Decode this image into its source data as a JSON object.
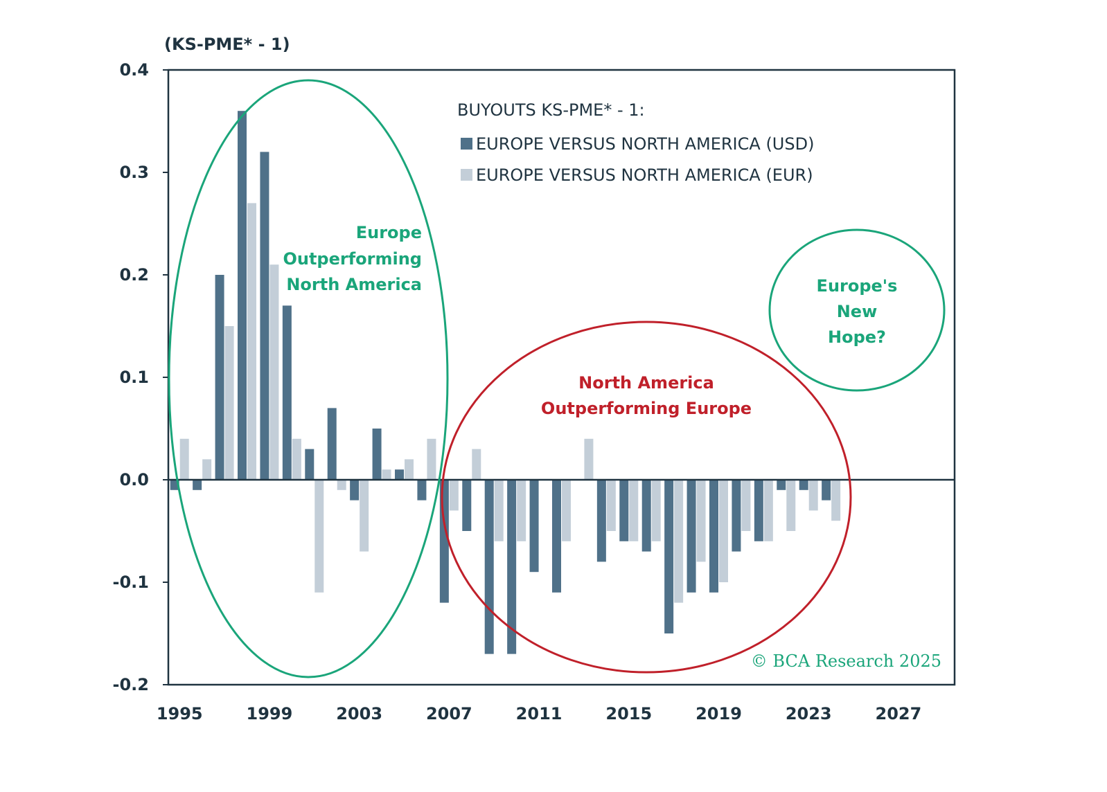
{
  "chart_data": {
    "type": "bar",
    "ylabel": "(KS-PME* - 1)",
    "ylim": [
      -0.2,
      0.4
    ],
    "yticks": [
      "0.4",
      "0.3",
      "0.2",
      "0.1",
      "0.0",
      "-0.1",
      "-0.2"
    ],
    "xlim": [
      1994.5,
      2029.5
    ],
    "xticks": [
      "1995",
      "1999",
      "2003",
      "2007",
      "2011",
      "2015",
      "2019",
      "2023",
      "2027"
    ],
    "legend_title": "BUYOUTS KS-PME* - 1:",
    "legend_position": "top-right",
    "categories": [
      1995,
      1996,
      1997,
      1998,
      1999,
      2000,
      2001,
      2002,
      2003,
      2004,
      2005,
      2006,
      2007,
      2008,
      2009,
      2010,
      2011,
      2012,
      2013,
      2014,
      2015,
      2016,
      2017,
      2018,
      2019,
      2020,
      2021,
      2022,
      2023,
      2024
    ],
    "series": [
      {
        "name": "EUROPE VERSUS NORTH AMERICA (USD)",
        "color": "#4f7189",
        "values": [
          -0.01,
          -0.01,
          0.2,
          0.36,
          0.32,
          0.17,
          0.03,
          0.07,
          -0.02,
          0.05,
          0.01,
          -0.02,
          -0.12,
          -0.05,
          -0.17,
          -0.17,
          -0.09,
          -0.11,
          0.0,
          -0.08,
          -0.06,
          -0.07,
          -0.15,
          -0.11,
          -0.11,
          -0.07,
          -0.06,
          -0.01,
          -0.01,
          -0.02
        ]
      },
      {
        "name": "EUROPE VERSUS NORTH AMERICA (EUR)",
        "color": "#c3ced8",
        "values": [
          0.04,
          0.02,
          0.15,
          0.27,
          0.21,
          0.04,
          -0.11,
          -0.01,
          -0.07,
          0.01,
          0.02,
          0.04,
          -0.03,
          0.03,
          -0.06,
          -0.06,
          0.0,
          -0.06,
          0.04,
          -0.05,
          -0.06,
          -0.06,
          -0.12,
          -0.08,
          -0.1,
          -0.05,
          -0.06,
          -0.05,
          -0.03,
          -0.04
        ]
      }
    ],
    "annotations": {
      "europe": [
        "Europe",
        "Outperforming",
        "North America"
      ],
      "north_america": [
        "North America",
        "Outperforming Europe"
      ],
      "hope": [
        "Europe's",
        "New",
        "Hope?"
      ]
    },
    "copyright": "© BCA Research 2025",
    "colors": {
      "green": "#1aa57a",
      "red": "#c0202a",
      "axis": "#1f3340"
    }
  }
}
